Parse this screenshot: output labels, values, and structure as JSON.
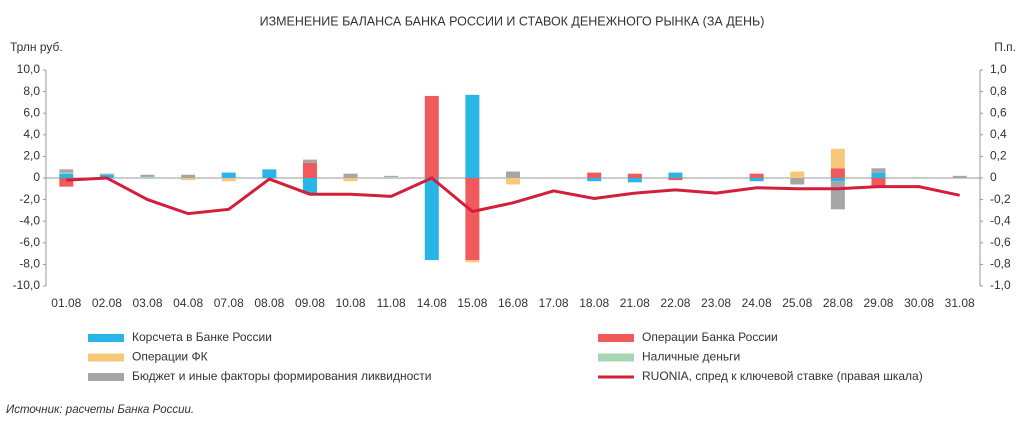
{
  "chart_data": {
    "type": "bar",
    "title": "ИЗМЕНЕНИЕ БАЛАНСА БАНКА РОССИИ И СТАВОК ДЕНЕЖНОГО РЫНКА (ЗА ДЕНЬ)",
    "y_label": "Трлн руб.",
    "y2_label": "П.п.",
    "source": "Источник: расчеты Банка России.",
    "categories": [
      "01.08",
      "02.08",
      "03.08",
      "04.08",
      "07.08",
      "08.08",
      "09.08",
      "10.08",
      "11.08",
      "14.08",
      "15.08",
      "16.08",
      "17.08",
      "18.08",
      "21.08",
      "22.08",
      "23.08",
      "24.08",
      "25.08",
      "28.08",
      "29.08",
      "30.08",
      "31.08"
    ],
    "series": [
      {
        "name": "Корсчета в Банке России",
        "color": "#29b6e6",
        "values": [
          0.4,
          0.3,
          0,
          0,
          0.5,
          0.8,
          -1.4,
          0,
          0,
          -7.6,
          7.7,
          0,
          0,
          -0.3,
          -0.4,
          0.5,
          0,
          -0.3,
          0,
          -0.3,
          0.5,
          0,
          0
        ]
      },
      {
        "name": "Операции Банка России",
        "color": "#f15a5c",
        "values": [
          -0.8,
          0,
          0,
          0,
          0,
          0,
          1.4,
          0,
          0,
          7.6,
          -7.6,
          0,
          0,
          0.5,
          0.4,
          -0.2,
          0,
          0.4,
          0,
          0.9,
          -0.7,
          0,
          0
        ]
      },
      {
        "name": "Операции ФК",
        "color": "#f7c77a",
        "values": [
          0,
          0,
          0,
          -0.2,
          -0.3,
          0,
          0,
          -0.3,
          0,
          0,
          -0.2,
          -0.6,
          0,
          0,
          0,
          0,
          0,
          0,
          0.6,
          1.8,
          0,
          0,
          0
        ]
      },
      {
        "name": "Наличные деньги",
        "color": "#a9d5b3",
        "values": [
          0.1,
          0,
          0.1,
          0,
          0,
          0,
          0,
          0,
          0.1,
          0,
          0,
          0,
          0,
          0,
          0,
          0,
          0,
          0,
          0,
          0,
          0,
          0.1,
          0
        ]
      },
      {
        "name": "Бюджет и иные факторы формирования ликвидности",
        "color": "#a6a6a6",
        "values": [
          0.3,
          0.1,
          0.2,
          0.3,
          0,
          0,
          0.3,
          0.4,
          0.1,
          0,
          0,
          0.6,
          0,
          0,
          0,
          0,
          0,
          0,
          -0.6,
          -2.6,
          0.4,
          0,
          0.2
        ]
      },
      {
        "name": "RUONIA, спред к ключевой ставке (правая шкала)",
        "color": "#d31f3b",
        "type": "line",
        "axis": "y2",
        "values": [
          -0.02,
          0,
          -0.2,
          -0.33,
          -0.29,
          -0.01,
          -0.15,
          -0.15,
          -0.17,
          0,
          -0.31,
          -0.23,
          -0.12,
          -0.19,
          -0.14,
          -0.11,
          -0.14,
          -0.09,
          -0.1,
          -0.1,
          -0.08,
          -0.08,
          -0.16
        ]
      }
    ],
    "ylim": [
      -10,
      10
    ],
    "yticks": [
      {
        "value": -10,
        "label": "-10,0"
      },
      {
        "value": -8,
        "label": "-8,0"
      },
      {
        "value": -6,
        "label": "-6,0"
      },
      {
        "value": -4,
        "label": "-4,0"
      },
      {
        "value": -2,
        "label": "-2,0"
      },
      0,
      {
        "value": 2,
        "label": "2,0"
      },
      {
        "value": 4,
        "label": "4,0"
      },
      {
        "value": 6,
        "label": "6,0"
      },
      {
        "value": 8,
        "label": "8,0"
      },
      {
        "value": 10,
        "label": "10,0"
      }
    ],
    "y2lim": [
      -1,
      1
    ],
    "y2ticks": [
      {
        "value": -1,
        "label": "-1,0"
      },
      {
        "value": -0.8,
        "label": "-0,8"
      },
      {
        "value": -0.6,
        "label": "-0,6"
      },
      {
        "value": -0.4,
        "label": "-0,4"
      },
      {
        "value": -0.2,
        "label": "-0,2"
      },
      0,
      {
        "value": 0.2,
        "label": "0,2"
      },
      {
        "value": 0.4,
        "label": "0,4"
      },
      {
        "value": 0.6,
        "label": "0,6"
      },
      {
        "value": 0.8,
        "label": "0,8"
      },
      {
        "value": 1,
        "label": "1,0"
      }
    ],
    "grid": false
  }
}
